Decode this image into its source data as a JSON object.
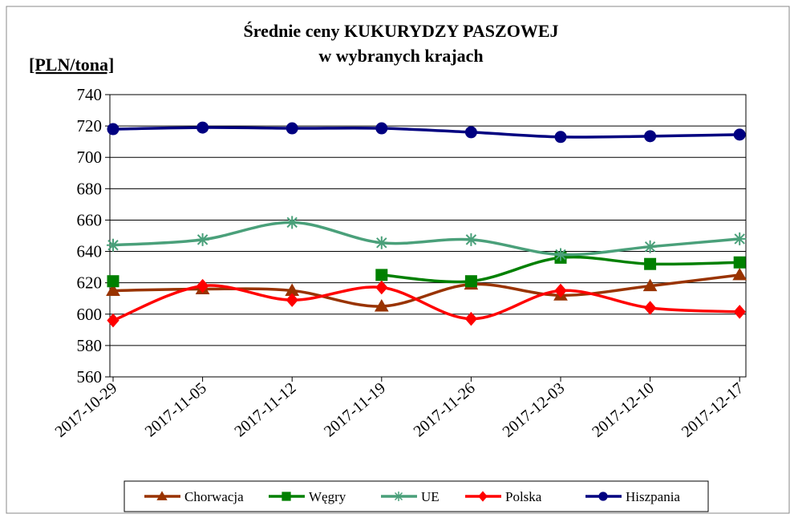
{
  "chart_data": {
    "type": "line",
    "title": "Średnie ceny KUKURYDZY PASZOWEJ",
    "subtitle": "w wybranych krajach",
    "y_label": "[PLN/tona]",
    "categories": [
      "2017-10-29",
      "2017-11-05",
      "2017-11-12",
      "2017-11-19",
      "2017-11-26",
      "2017-12-03",
      "2017-12-10",
      "2017-12-17"
    ],
    "series": [
      {
        "name": "Chorwacja",
        "color": "#993300",
        "marker": "triangle",
        "values": [
          615,
          616,
          615,
          605,
          619,
          612,
          618,
          625
        ]
      },
      {
        "name": "Węgry",
        "color": "#008000",
        "marker": "square",
        "values": [
          621,
          null,
          null,
          625,
          621,
          636,
          632,
          633
        ]
      },
      {
        "name": "UE",
        "color": "#4aa07a",
        "marker": "star",
        "values": [
          644,
          647.5,
          658.5,
          645.5,
          647.5,
          638,
          643,
          648
        ]
      },
      {
        "name": "Polska",
        "color": "#ff0000",
        "marker": "diamond",
        "values": [
          596,
          618,
          609,
          617,
          597,
          615,
          604,
          601.5
        ]
      },
      {
        "name": "Hiszpania",
        "color": "#000080",
        "marker": "circle",
        "values": [
          718,
          719,
          718.5,
          718.5,
          716,
          713,
          713.5,
          714.5
        ]
      }
    ],
    "ylim": [
      560,
      740
    ],
    "yticks": [
      560,
      580,
      600,
      620,
      640,
      660,
      680,
      700,
      720,
      740
    ],
    "grid": true,
    "smooth": true,
    "legend": "bottom"
  }
}
